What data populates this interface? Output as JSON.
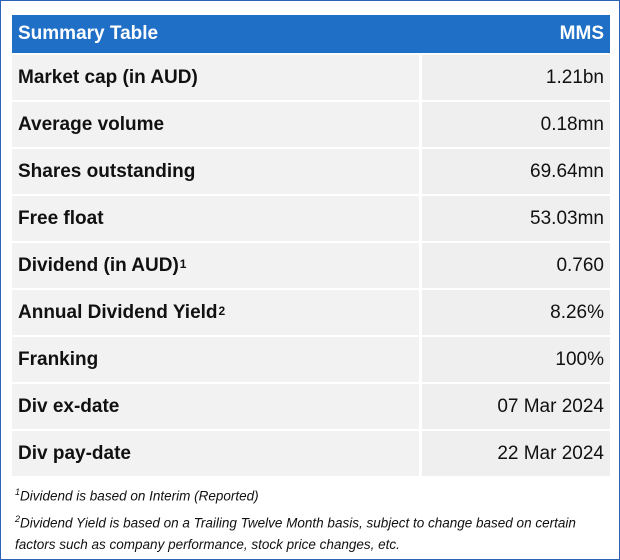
{
  "table": {
    "title": "Summary Table",
    "ticker": "MMS",
    "rows": [
      {
        "label": "Market cap (in AUD)",
        "sup": "",
        "value": "1.21bn"
      },
      {
        "label": "Average volume",
        "sup": "",
        "value": "0.18mn"
      },
      {
        "label": "Shares outstanding",
        "sup": "",
        "value": "69.64mn"
      },
      {
        "label": "Free float",
        "sup": "",
        "value": "53.03mn"
      },
      {
        "label": "Dividend (in AUD)",
        "sup": "1",
        "value": "0.760"
      },
      {
        "label": "Annual Dividend Yield",
        "sup": "2",
        "value": "8.26%"
      },
      {
        "label": "Franking",
        "sup": "",
        "value": "100%"
      },
      {
        "label": "Div ex-date",
        "sup": "",
        "value": "07 Mar 2024"
      },
      {
        "label": "Div pay-date",
        "sup": "",
        "value": "22 Mar 2024"
      }
    ]
  },
  "footnotes": [
    {
      "mark": "1",
      "text": "Dividend is based on Interim (Reported)"
    },
    {
      "mark": "2",
      "text": "Dividend Yield is based on a Trailing Twelve Month basis, subject to change based on certain factors such as company performance, stock price changes, etc."
    }
  ],
  "colors": {
    "header_bg": "#1f6fc7",
    "cell_bg": "#f2f2f2",
    "border": "#2b63b8"
  }
}
